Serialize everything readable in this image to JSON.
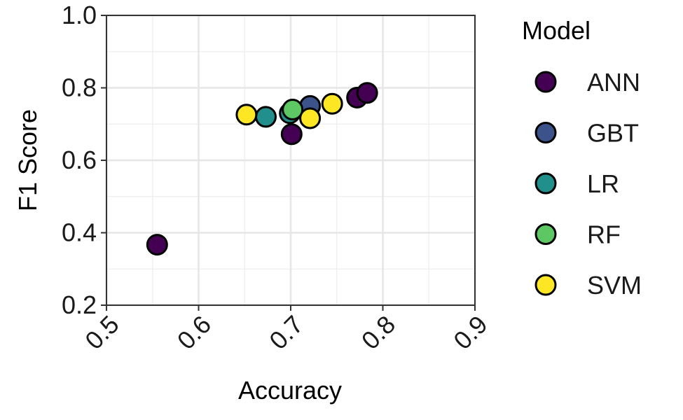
{
  "chart_data": {
    "type": "scatter",
    "xlabel": "Accuracy",
    "ylabel": "F1 Score",
    "xlim": [
      0.5,
      0.9
    ],
    "ylim": [
      0.2,
      1.0
    ],
    "x_ticks": [
      "0.5",
      "0.6",
      "0.7",
      "0.8",
      "0.9"
    ],
    "y_ticks": [
      "0.2",
      "0.4",
      "0.6",
      "0.8",
      "1.0"
    ],
    "grid": true,
    "legend_title": "Model",
    "legend_position": "right",
    "series": [
      {
        "name": "ANN",
        "color": "#440154",
        "points": [
          [
            0.555,
            0.367
          ],
          [
            0.701,
            0.672
          ],
          [
            0.772,
            0.773
          ],
          [
            0.783,
            0.786
          ]
        ]
      },
      {
        "name": "GBT",
        "color": "#3B528B",
        "points": [
          [
            0.721,
            0.75
          ]
        ]
      },
      {
        "name": "LR",
        "color": "#21908C",
        "points": [
          [
            0.673,
            0.72
          ],
          [
            0.699,
            0.73
          ]
        ]
      },
      {
        "name": "RF",
        "color": "#5DC863",
        "points": [
          [
            0.702,
            0.74
          ]
        ]
      },
      {
        "name": "SVM",
        "color": "#FDE725",
        "points": [
          [
            0.652,
            0.726
          ],
          [
            0.721,
            0.716
          ],
          [
            0.745,
            0.756
          ]
        ]
      }
    ]
  }
}
